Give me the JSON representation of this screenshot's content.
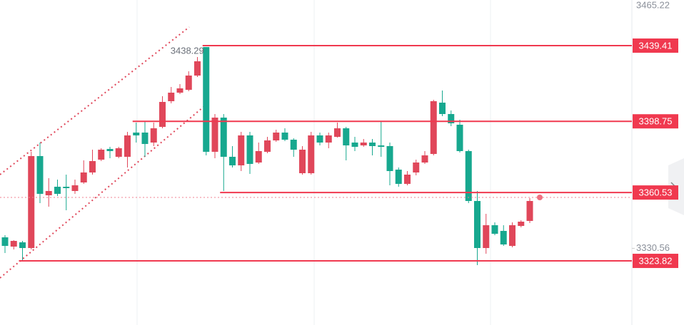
{
  "chart_data": {
    "type": "candlestick",
    "open": [
      3336.46,
      3331.49,
      3333.78,
      3330.72,
      3380.09,
      3359.04,
      3363.63,
      3363.63,
      3361.34,
      3365.93,
      3371.29,
      3378.18,
      3383.92,
      3379.71,
      3379.71,
      3392.72,
      3392.72,
      3387.36,
      3395.78,
      3409.56,
      3414.15,
      3415.68,
      3423.33,
      3438.64,
      3382.39,
      3400.75,
      3379.71,
      3375.11,
      3391.19,
      3376.64,
      3382.39,
      3388.51,
      3392.72,
      3388.89,
      3370.9,
      3370.9,
      3391.19,
      3387.36,
      3390.42,
      3395.01,
      3387.36,
      3385.83,
      3387.36,
      3385.83,
      3385.45,
      3372.82,
      3365.17,
      3371.29,
      3376.64,
      3381.24,
      3408.79,
      3402.67,
      3396.93,
      3382.77,
      3355.98,
      3330.72,
      3342.97,
      3339.91,
      3331.87,
      3342.59,
      3345.27
    ],
    "high": [
      3337.61,
      3334.93,
      3334.55,
      3382.39,
      3387.36,
      3368.23,
      3367.46,
      3370.14,
      3367.46,
      3377.79,
      3383.53,
      3384.3,
      3385.06,
      3385.06,
      3393.1,
      3398.08,
      3398.84,
      3398.08,
      3412.24,
      3417.21,
      3418.74,
      3425.63,
      3433.28,
      3438.29,
      3402.67,
      3402.67,
      3385.45,
      3393.1,
      3393.1,
      3387.36,
      3390.42,
      3394.25,
      3395.01,
      3389.66,
      3385.45,
      3393.1,
      3392.72,
      3392.72,
      3398.08,
      3395.78,
      3390.42,
      3389.27,
      3389.27,
      3398.84,
      3387.36,
      3373.97,
      3372.05,
      3378.18,
      3382.77,
      3410.32,
      3415.3,
      3404.58,
      3399.61,
      3383.53,
      3361.34,
      3349.09,
      3344.5,
      3342.97,
      3344.5,
      3345.65,
      3357.51
    ],
    "low": [
      3328.04,
      3329.96,
      3324.22,
      3329.96,
      3354.83,
      3352.92,
      3358.66,
      3351.0,
      3359.81,
      3365.17,
      3370.14,
      3377.41,
      3378.94,
      3378.94,
      3373.97,
      3387.36,
      3379.71,
      3385.45,
      3395.01,
      3408.41,
      3413.38,
      3414.91,
      3422.57,
      3380.47,
      3378.94,
      3361.34,
      3373.97,
      3372.05,
      3370.52,
      3375.88,
      3381.62,
      3387.74,
      3388.12,
      3379.71,
      3370.14,
      3370.14,
      3385.83,
      3384.3,
      3390.04,
      3377.79,
      3382.77,
      3385.06,
      3380.47,
      3379.71,
      3364.4,
      3363.63,
      3364.4,
      3369.76,
      3375.88,
      3380.47,
      3401.52,
      3396.16,
      3382.0,
      3354.83,
      3321.54,
      3327.66,
      3337.61,
      3331.87,
      3331.1,
      3341.82,
      3344.12
    ],
    "close": [
      3331.87,
      3334.55,
      3330.72,
      3380.09,
      3359.81,
      3361.34,
      3359.81,
      3362.87,
      3364.4,
      3371.29,
      3377.41,
      3383.53,
      3382.77,
      3384.3,
      3391.19,
      3391.19,
      3386.59,
      3395.01,
      3409.17,
      3414.15,
      3416.45,
      3423.33,
      3430.99,
      3382.39,
      3400.75,
      3379.71,
      3375.11,
      3391.19,
      3375.88,
      3382.77,
      3388.51,
      3392.72,
      3388.89,
      3383.53,
      3383.53,
      3391.19,
      3387.36,
      3391.19,
      3395.01,
      3385.83,
      3385.06,
      3387.36,
      3385.45,
      3385.06,
      3372.05,
      3365.17,
      3370.14,
      3376.64,
      3380.47,
      3409.56,
      3402.67,
      3397.69,
      3382.77,
      3355.98,
      3330.72,
      3342.97,
      3338.38,
      3332.64,
      3342.97,
      3344.88,
      3355.98
    ],
    "up_color": "#e0475a",
    "down_color": "#17a88f",
    "levels": [
      3439.41,
      3398.75,
      3360.53,
      3323.82
    ],
    "level_color": "#f0394f",
    "ylim": [
      3289.39,
      3463.9
    ],
    "yticks": [
      3465.22,
      3330.56
    ]
  }
}
